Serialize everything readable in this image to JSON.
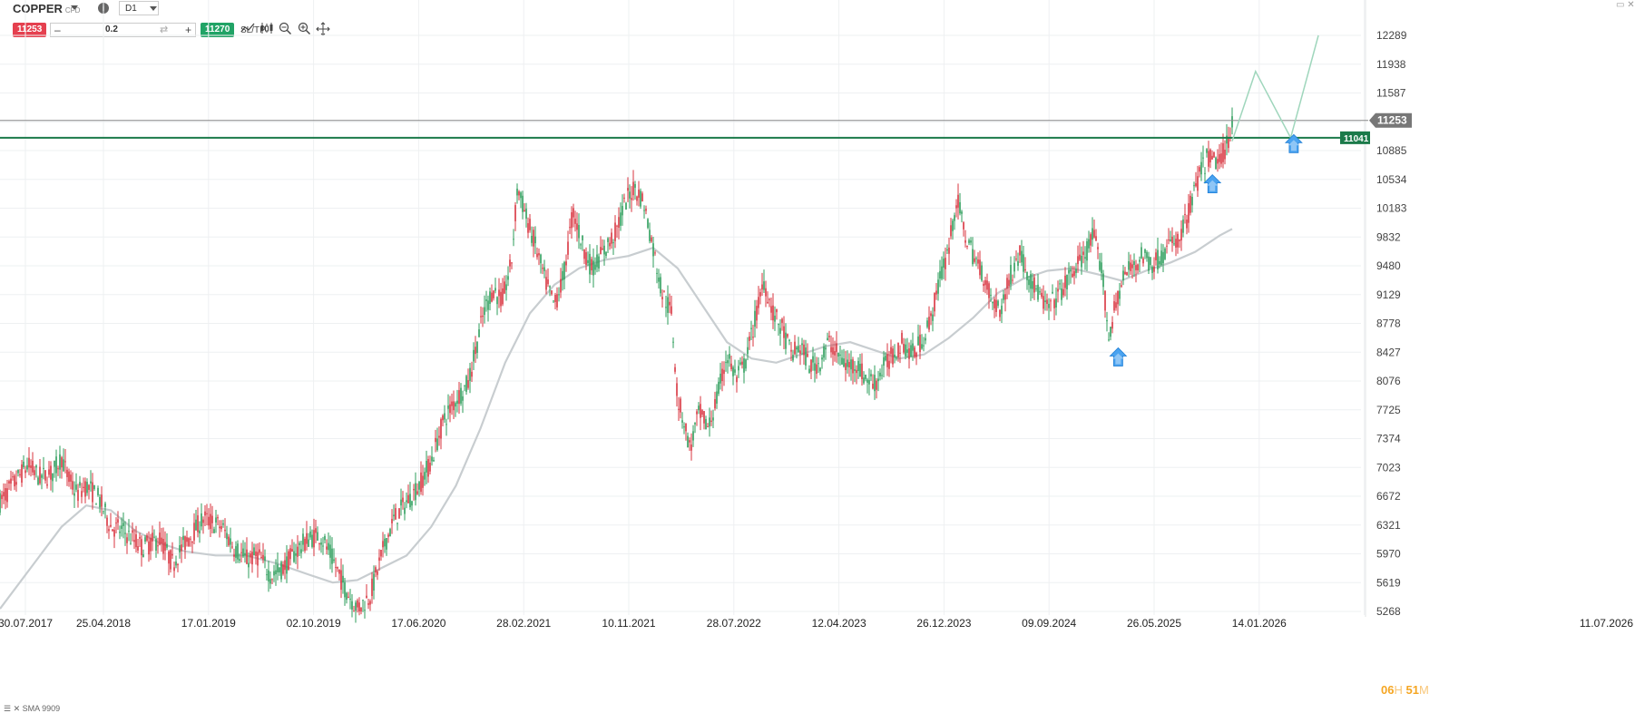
{
  "toolbar": {
    "symbol": "COPPER",
    "symbol_type": "CFD",
    "info_icon": "i",
    "timeframe": "D1",
    "sell_price": "11253",
    "buy_price": "11270",
    "lot_minus": "–",
    "lot_value": "0.2",
    "lot_swap": "⇄",
    "lot_plus": "+",
    "sltp_label": "SL/TP",
    "tool_icons": [
      "line-chart-icon",
      "candlestick-icon",
      "zoom-out-icon",
      "zoom-in-icon",
      "crosshair-icon"
    ]
  },
  "sma_label": "SMA 9909",
  "timer": {
    "hours": "06",
    "h_unit": "H",
    "minutes": "51",
    "m_unit": "M"
  },
  "colors": {
    "up": "#2e9e5b",
    "down": "#d8343f",
    "sma": "#c8cdd0",
    "current_price_line": "#888888",
    "resistance": "#1b7a4a",
    "projection": "#9fd6bc",
    "arrow": "#4aa3f0",
    "grid": "#eef0f2"
  },
  "chart_data": {
    "type": "candlestick",
    "y_ticks": [
      "12289",
      "11938",
      "11587",
      "11253",
      "10885",
      "10534",
      "10183",
      "9832",
      "9480",
      "9129",
      "8778",
      "8427",
      "8076",
      "7725",
      "7374",
      "7023",
      "6672",
      "6321",
      "5970",
      "5619",
      "5268"
    ],
    "x_ticks": [
      "30.07.2017",
      "25.04.2018",
      "17.01.2019",
      "02.10.2019",
      "17.06.2020",
      "28.02.2021",
      "10.11.2021",
      "28.07.2022",
      "12.04.2023",
      "26.12.2023",
      "09.09.2024",
      "26.05.2025",
      "14.01.2026",
      "11.07.2026"
    ],
    "ylim": [
      5268,
      12289
    ],
    "current_price": 11253,
    "resistance_level": 11041,
    "price_path": [
      [
        0.0,
        6600
      ],
      [
        0.02,
        6800
      ],
      [
        0.045,
        7050
      ],
      [
        0.065,
        6900
      ],
      [
        0.085,
        6950
      ],
      [
        0.1,
        7150
      ],
      [
        0.11,
        6900
      ],
      [
        0.125,
        6700
      ],
      [
        0.14,
        6800
      ],
      [
        0.16,
        6650
      ],
      [
        0.18,
        6300
      ],
      [
        0.2,
        6250
      ],
      [
        0.23,
        6050
      ],
      [
        0.26,
        6150
      ],
      [
        0.28,
        5850
      ],
      [
        0.3,
        6100
      ],
      [
        0.33,
        6400
      ],
      [
        0.36,
        6300
      ],
      [
        0.38,
        6050
      ],
      [
        0.4,
        5900
      ],
      [
        0.42,
        5950
      ],
      [
        0.44,
        5700
      ],
      [
        0.46,
        5800
      ],
      [
        0.48,
        6000
      ],
      [
        0.5,
        6150
      ],
      [
        0.52,
        6200
      ],
      [
        0.54,
        5900
      ],
      [
        0.56,
        5550
      ],
      [
        0.58,
        5300
      ],
      [
        0.6,
        5450
      ],
      [
        0.61,
        5700
      ],
      [
        0.625,
        6100
      ],
      [
        0.64,
        6400
      ],
      [
        0.66,
        6600
      ],
      [
        0.68,
        6800
      ],
      [
        0.7,
        7100
      ],
      [
        0.72,
        7600
      ],
      [
        0.74,
        7850
      ],
      [
        0.76,
        8050
      ],
      [
        0.785,
        8900
      ],
      [
        0.8,
        9200
      ],
      [
        0.815,
        9050
      ],
      [
        0.83,
        9500
      ],
      [
        0.84,
        10450
      ],
      [
        0.855,
        10050
      ],
      [
        0.87,
        9700
      ],
      [
        0.885,
        9300
      ],
      [
        0.9,
        9000
      ],
      [
        0.915,
        9350
      ],
      [
        0.93,
        10150
      ],
      [
        0.945,
        9750
      ],
      [
        0.96,
        9450
      ],
      [
        0.98,
        9650
      ],
      [
        1.0,
        9900
      ],
      [
        1.015,
        10250
      ],
      [
        1.03,
        10450
      ],
      [
        1.045,
        10250
      ],
      [
        1.06,
        9700
      ],
      [
        1.075,
        9150
      ],
      [
        1.09,
        8900
      ],
      [
        1.1,
        7850
      ],
      [
        1.11,
        7600
      ],
      [
        1.12,
        7250
      ],
      [
        1.135,
        7700
      ],
      [
        1.15,
        7500
      ],
      [
        1.165,
        7900
      ],
      [
        1.18,
        8400
      ],
      [
        1.195,
        8100
      ],
      [
        1.21,
        8300
      ],
      [
        1.225,
        8800
      ],
      [
        1.24,
        9300
      ],
      [
        1.255,
        8900
      ],
      [
        1.27,
        8700
      ],
      [
        1.285,
        8400
      ],
      [
        1.3,
        8500
      ],
      [
        1.315,
        8250
      ],
      [
        1.33,
        8300
      ],
      [
        1.345,
        8550
      ],
      [
        1.36,
        8400
      ],
      [
        1.375,
        8250
      ],
      [
        1.39,
        8300
      ],
      [
        1.405,
        8100
      ],
      [
        1.42,
        8050
      ],
      [
        1.435,
        8250
      ],
      [
        1.45,
        8400
      ],
      [
        1.465,
        8550
      ],
      [
        1.48,
        8400
      ],
      [
        1.495,
        8550
      ],
      [
        1.51,
        8800
      ],
      [
        1.525,
        9300
      ],
      [
        1.54,
        9700
      ],
      [
        1.553,
        10300
      ],
      [
        1.565,
        9900
      ],
      [
        1.58,
        9600
      ],
      [
        1.595,
        9400
      ],
      [
        1.61,
        9050
      ],
      [
        1.625,
        8950
      ],
      [
        1.64,
        9350
      ],
      [
        1.655,
        9650
      ],
      [
        1.67,
        9350
      ],
      [
        1.685,
        9150
      ],
      [
        1.7,
        8950
      ],
      [
        1.715,
        9100
      ],
      [
        1.73,
        9250
      ],
      [
        1.745,
        9450
      ],
      [
        1.76,
        9600
      ],
      [
        1.775,
        9850
      ],
      [
        1.79,
        9350
      ],
      [
        1.8,
        8600
      ],
      [
        1.812,
        9050
      ],
      [
        1.825,
        9350
      ],
      [
        1.84,
        9500
      ],
      [
        1.855,
        9600
      ],
      [
        1.87,
        9500
      ],
      [
        1.885,
        9600
      ],
      [
        1.9,
        9750
      ],
      [
        1.915,
        9800
      ],
      [
        1.93,
        10150
      ],
      [
        1.945,
        10550
      ],
      [
        1.96,
        10800
      ],
      [
        1.975,
        10750
      ],
      [
        1.99,
        10900
      ],
      [
        2.0,
        11253
      ]
    ],
    "sma_path": [
      [
        0.0,
        5300
      ],
      [
        0.05,
        5800
      ],
      [
        0.1,
        6300
      ],
      [
        0.14,
        6560
      ],
      [
        0.18,
        6500
      ],
      [
        0.22,
        6250
      ],
      [
        0.26,
        6100
      ],
      [
        0.3,
        6000
      ],
      [
        0.35,
        5950
      ],
      [
        0.4,
        5950
      ],
      [
        0.45,
        5850
      ],
      [
        0.5,
        5720
      ],
      [
        0.54,
        5620
      ],
      [
        0.58,
        5650
      ],
      [
        0.62,
        5800
      ],
      [
        0.66,
        5950
      ],
      [
        0.7,
        6300
      ],
      [
        0.74,
        6800
      ],
      [
        0.78,
        7500
      ],
      [
        0.82,
        8300
      ],
      [
        0.86,
        8900
      ],
      [
        0.9,
        9250
      ],
      [
        0.94,
        9450
      ],
      [
        0.98,
        9550
      ],
      [
        1.02,
        9600
      ],
      [
        1.06,
        9700
      ],
      [
        1.1,
        9450
      ],
      [
        1.14,
        9000
      ],
      [
        1.18,
        8550
      ],
      [
        1.22,
        8350
      ],
      [
        1.26,
        8300
      ],
      [
        1.3,
        8400
      ],
      [
        1.34,
        8500
      ],
      [
        1.38,
        8550
      ],
      [
        1.42,
        8450
      ],
      [
        1.46,
        8350
      ],
      [
        1.5,
        8400
      ],
      [
        1.54,
        8600
      ],
      [
        1.58,
        8850
      ],
      [
        1.62,
        9150
      ],
      [
        1.66,
        9320
      ],
      [
        1.7,
        9420
      ],
      [
        1.74,
        9450
      ],
      [
        1.78,
        9380
      ],
      [
        1.82,
        9300
      ],
      [
        1.86,
        9420
      ],
      [
        1.9,
        9520
      ],
      [
        1.94,
        9650
      ],
      [
        1.98,
        9850
      ],
      [
        2.0,
        9930
      ]
    ],
    "projection_path": [
      [
        2.0,
        11000
      ],
      [
        2.038,
        11850
      ],
      [
        2.095,
        11041
      ],
      [
        2.14,
        12289
      ]
    ],
    "arrows": [
      [
        1.815,
        8370
      ],
      [
        1.968,
        10480
      ],
      [
        2.1,
        10970
      ]
    ],
    "grid": true
  }
}
